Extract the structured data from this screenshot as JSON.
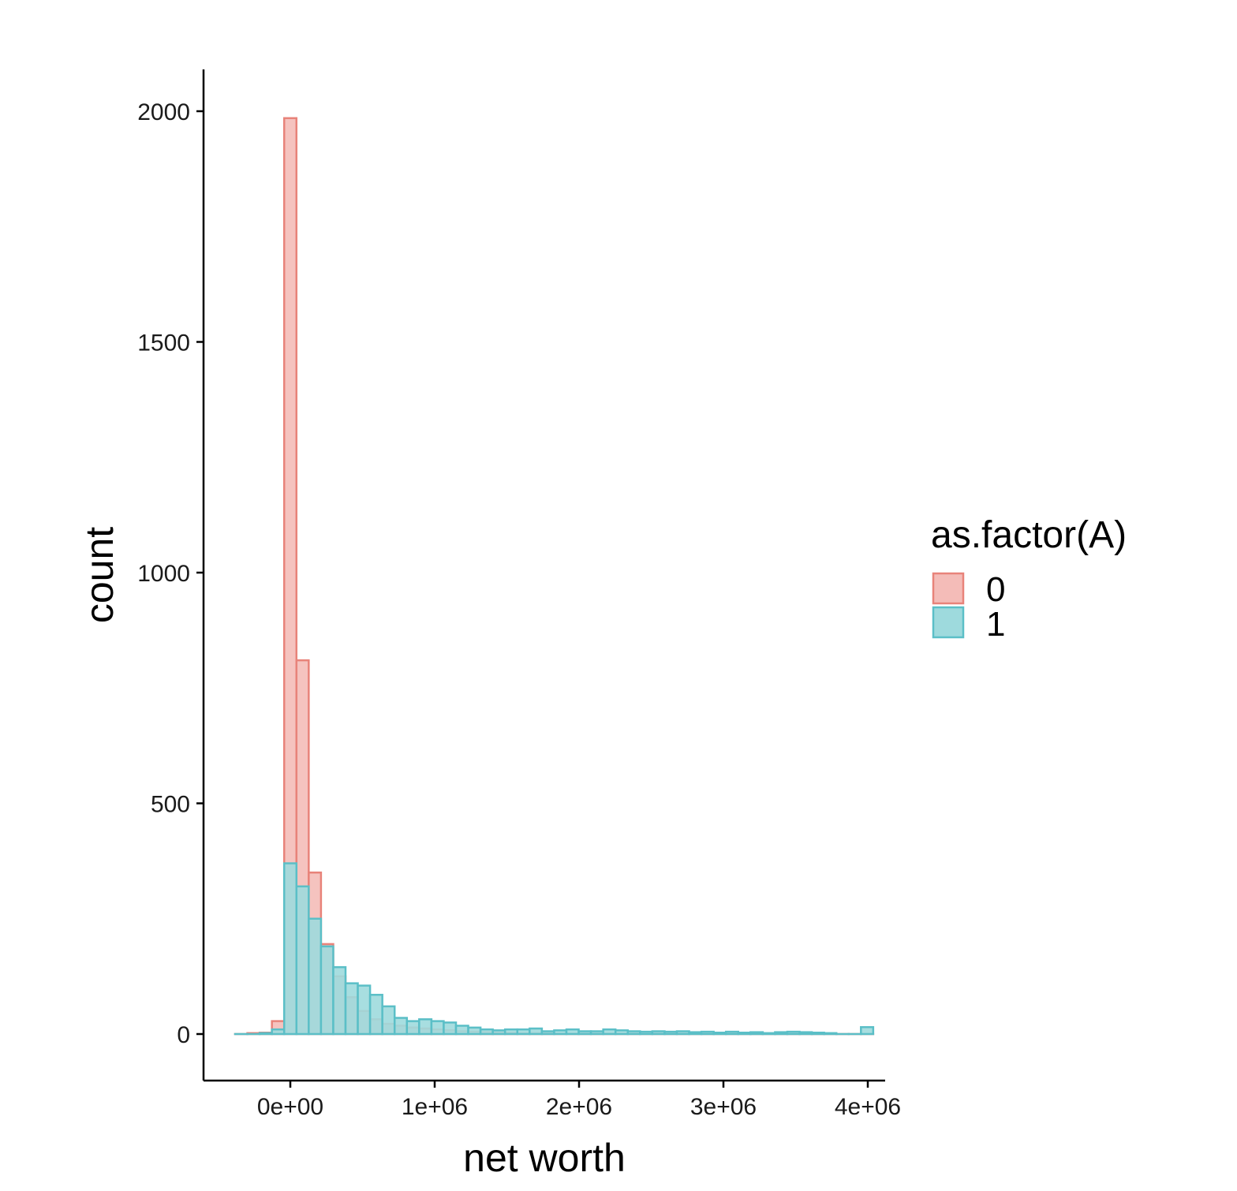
{
  "chart_data": {
    "type": "bar",
    "subtype": "histogram",
    "title": "",
    "xlabel": "net worth",
    "ylabel": "count",
    "xlim": [
      -600000,
      4100000
    ],
    "ylim": [
      -100,
      2100
    ],
    "x_ticks": [
      {
        "value": 0,
        "label": "0e+00"
      },
      {
        "value": 1000000,
        "label": "1e+06"
      },
      {
        "value": 2000000,
        "label": "2e+06"
      },
      {
        "value": 3000000,
        "label": "3e+06"
      },
      {
        "value": 4000000,
        "label": "4e+06"
      }
    ],
    "y_ticks": [
      {
        "value": 0,
        "label": "0"
      },
      {
        "value": 500,
        "label": "500"
      },
      {
        "value": 1000,
        "label": "1000"
      },
      {
        "value": 1500,
        "label": "1500"
      },
      {
        "value": 2000,
        "label": "2000"
      }
    ],
    "bin_width": 85000,
    "bin_start": -382500,
    "grid": false,
    "legend": {
      "title": "as.factor(A)",
      "placement": "right"
    },
    "series": [
      {
        "name": "0",
        "fill": "#f4bcb8",
        "stroke": "#e8837a",
        "values": [
          0,
          2,
          3,
          28,
          1985,
          810,
          350,
          195,
          125,
          80,
          50,
          32,
          22,
          18,
          14,
          12,
          10,
          8,
          6,
          5,
          4,
          3,
          3,
          2,
          2,
          2,
          1,
          1,
          1,
          1,
          1,
          1,
          1,
          1,
          1,
          1,
          1,
          1,
          1,
          1,
          1,
          0,
          0,
          0,
          0,
          0,
          0,
          0,
          0,
          0,
          0,
          0
        ]
      },
      {
        "name": "1",
        "fill": "#9edadd",
        "stroke": "#5bbfc7",
        "values": [
          0,
          0,
          2,
          10,
          370,
          320,
          250,
          190,
          145,
          110,
          105,
          85,
          60,
          35,
          28,
          32,
          28,
          25,
          18,
          14,
          10,
          8,
          10,
          10,
          12,
          6,
          8,
          10,
          6,
          6,
          10,
          8,
          6,
          5,
          6,
          5,
          6,
          4,
          5,
          3,
          5,
          3,
          4,
          2,
          4,
          5,
          4,
          3,
          2,
          0,
          0,
          15
        ]
      }
    ]
  }
}
